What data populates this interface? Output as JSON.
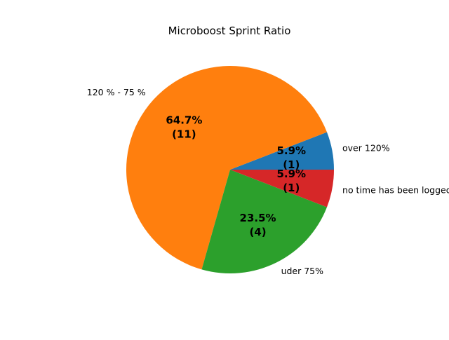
{
  "chart_data": {
    "type": "pie",
    "title": "Microboost Sprint Ratio",
    "categories": [
      "over 120%",
      "120 % - 75 %",
      "uder 75%",
      "no time has been logged"
    ],
    "values": [
      1,
      11,
      4,
      1
    ],
    "percent_labels": [
      "5.9%",
      "64.7%",
      "23.5%",
      "5.9%"
    ],
    "count_labels": [
      "(1)",
      "(11)",
      "(4)",
      "(1)"
    ],
    "colors": [
      "#1f77b4",
      "#ff7f0e",
      "#2ca02c",
      "#d62728"
    ]
  }
}
